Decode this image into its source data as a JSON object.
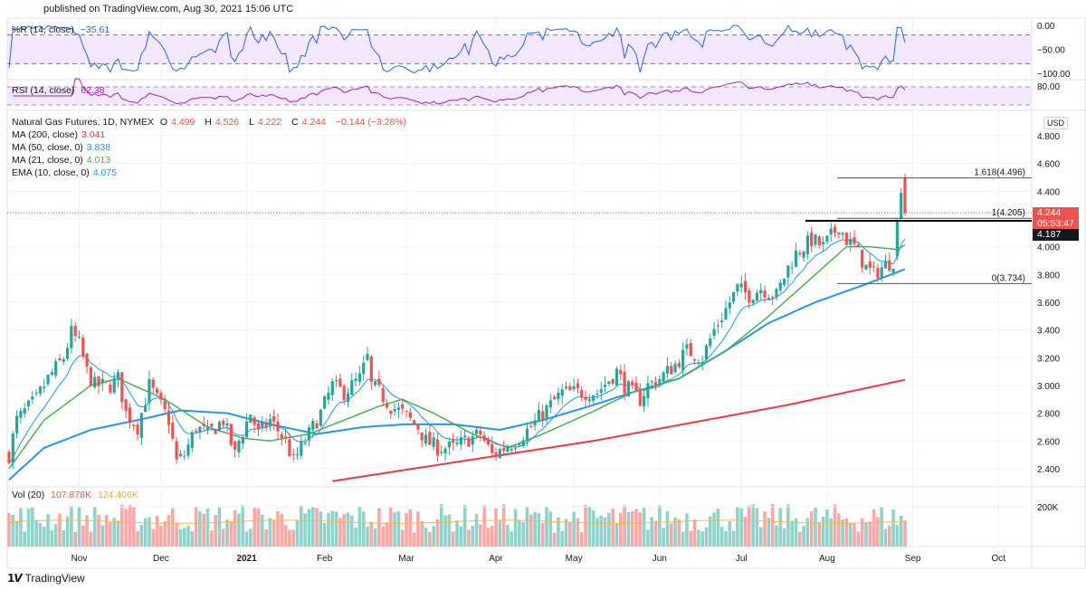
{
  "header": {
    "published": "published on TradingView.com, Aug 30, 2021 15:06 UTC"
  },
  "footer": {
    "brand": "TradingView",
    "logo_text": "TV"
  },
  "indicators": {
    "wr": {
      "label": "%R (14, close)",
      "value": "−35.61",
      "axis": [
        "0.00",
        "−50.00",
        "−100.00"
      ],
      "color": "#2962ff"
    },
    "rsi": {
      "label": "RSI (14, close)",
      "value": "62.38",
      "axis": [
        "80.00"
      ],
      "color": "#9c27b0"
    },
    "vol": {
      "label": "Vol (20)",
      "value": "107.878K",
      "ma_value": "124.406K",
      "axis": "200K"
    }
  },
  "main": {
    "symbol": "Natural Gas Futures, 1D, NYMEX",
    "ohlc": {
      "o_label": "O",
      "o": "4.499",
      "h_label": "H",
      "h": "4.526",
      "l_label": "L",
      "l": "4.222",
      "c_label": "C",
      "c": "4.244",
      "change": "−0.144 (−3.28%)"
    },
    "ma200": {
      "label": "MA (200, close)",
      "value": "3.041",
      "color": "#f23645"
    },
    "ma50": {
      "label": "MA (50, close, 0)",
      "value": "3.838",
      "color": "#2196f3"
    },
    "ma21": {
      "label": "MA (21, close, 0)",
      "value": "4.013",
      "color": "#4caf50"
    },
    "ema10": {
      "label": "EMA (10, close, 0)",
      "value": "4.075",
      "color": "#2196f3"
    },
    "currency": "USD",
    "last_price": "4.244",
    "countdown": "05:53:47",
    "crosshair_price": "4.187",
    "fib": [
      {
        "label": "1.618(4.496)",
        "price": 4.496
      },
      {
        "label": "1(4.205)",
        "price": 4.205
      },
      {
        "label": "0(3.734)",
        "price": 3.734
      }
    ]
  },
  "colors": {
    "up": "#26a69a",
    "down": "#ef5350",
    "vol_up": "#8fd3ca",
    "vol_down": "#f7a9a7",
    "vol_ma": "#ffb74d",
    "band": "#f3e8fd"
  },
  "chart_data": {
    "type": "candlestick",
    "title": "Natural Gas Futures, 1D, NYMEX",
    "ylim": [
      2.3,
      4.85
    ],
    "y_ticks": [
      "2.400",
      "2.600",
      "2.800",
      "3.000",
      "3.200",
      "3.400",
      "3.600",
      "3.800",
      "4.000",
      "4.200",
      "4.400",
      "4.600",
      "4.800"
    ],
    "x_ticks": [
      {
        "label": "Nov",
        "day": 18
      },
      {
        "label": "Dec",
        "day": 39
      },
      {
        "label": "2021",
        "day": 61
      },
      {
        "label": "Feb",
        "day": 81
      },
      {
        "label": "Mar",
        "day": 102
      },
      {
        "label": "Apr",
        "day": 125
      },
      {
        "label": "May",
        "day": 145
      },
      {
        "label": "Jun",
        "day": 167
      },
      {
        "label": "Jul",
        "day": 188
      },
      {
        "label": "Aug",
        "day": 210
      },
      {
        "label": "Sep",
        "day": 232
      },
      {
        "label": "Oct",
        "day": 254
      }
    ],
    "num_days": 231,
    "approx_close_path": [
      [
        0,
        2.5
      ],
      [
        2,
        2.75
      ],
      [
        7,
        2.9
      ],
      [
        10,
        3.05
      ],
      [
        14,
        3.2
      ],
      [
        16,
        3.38
      ],
      [
        18,
        3.3
      ],
      [
        20,
        3.1
      ],
      [
        22,
        3.0
      ],
      [
        26,
        3.0
      ],
      [
        28,
        3.05
      ],
      [
        30,
        2.8
      ],
      [
        33,
        2.7
      ],
      [
        36,
        3.0
      ],
      [
        38,
        2.9
      ],
      [
        41,
        2.75
      ],
      [
        43,
        2.45
      ],
      [
        45,
        2.5
      ],
      [
        48,
        2.7
      ],
      [
        51,
        2.65
      ],
      [
        55,
        2.75
      ],
      [
        58,
        2.5
      ],
      [
        59,
        2.6
      ],
      [
        62,
        2.8
      ],
      [
        64,
        2.65
      ],
      [
        67,
        2.75
      ],
      [
        71,
        2.6
      ],
      [
        73,
        2.45
      ],
      [
        77,
        2.65
      ],
      [
        80,
        2.8
      ],
      [
        83,
        3.0
      ],
      [
        86,
        2.95
      ],
      [
        90,
        3.05
      ],
      [
        92,
        3.2
      ],
      [
        93,
        3.0
      ],
      [
        95,
        2.95
      ],
      [
        98,
        2.85
      ],
      [
        101,
        2.8
      ],
      [
        105,
        2.7
      ],
      [
        107,
        2.6
      ],
      [
        110,
        2.55
      ],
      [
        114,
        2.55
      ],
      [
        117,
        2.6
      ],
      [
        121,
        2.65
      ],
      [
        124,
        2.5
      ],
      [
        127,
        2.55
      ],
      [
        130,
        2.6
      ],
      [
        134,
        2.7
      ],
      [
        137,
        2.8
      ],
      [
        142,
        2.95
      ],
      [
        147,
        2.95
      ],
      [
        151,
        2.95
      ],
      [
        156,
        3.1
      ],
      [
        158,
        3.0
      ],
      [
        162,
        2.9
      ],
      [
        164,
        3.0
      ],
      [
        167,
        3.05
      ],
      [
        171,
        3.15
      ],
      [
        174,
        3.25
      ],
      [
        178,
        3.2
      ],
      [
        181,
        3.4
      ],
      [
        185,
        3.6
      ],
      [
        187,
        3.7
      ],
      [
        190,
        3.65
      ],
      [
        193,
        3.7
      ],
      [
        197,
        3.65
      ],
      [
        200,
        3.85
      ],
      [
        202,
        3.95
      ],
      [
        206,
        4.05
      ],
      [
        209,
        4.0
      ],
      [
        213,
        4.15
      ],
      [
        215,
        4.05
      ],
      [
        217,
        4.0
      ],
      [
        220,
        3.85
      ],
      [
        222,
        3.8
      ],
      [
        224,
        3.85
      ],
      [
        227,
        3.9
      ]
    ],
    "last_candles": [
      {
        "day": 228,
        "o": 3.93,
        "h": 4.21,
        "l": 3.9,
        "c": 4.19
      },
      {
        "day": 229,
        "o": 4.2,
        "h": 4.42,
        "l": 4.19,
        "c": 4.388
      },
      {
        "day": 230,
        "o": 4.499,
        "h": 4.526,
        "l": 4.222,
        "c": 4.244
      }
    ],
    "ma200_path": [
      [
        83,
        2.31
      ],
      [
        150,
        2.6
      ],
      [
        200,
        2.86
      ],
      [
        230,
        3.041
      ]
    ],
    "ma50_path": [
      [
        0,
        2.32
      ],
      [
        9,
        2.55
      ],
      [
        21,
        2.68
      ],
      [
        33,
        2.75
      ],
      [
        44,
        2.82
      ],
      [
        56,
        2.8
      ],
      [
        67,
        2.72
      ],
      [
        79,
        2.65
      ],
      [
        91,
        2.7
      ],
      [
        102,
        2.72
      ],
      [
        114,
        2.72
      ],
      [
        126,
        2.68
      ],
      [
        137,
        2.75
      ],
      [
        149,
        2.85
      ],
      [
        160,
        2.95
      ],
      [
        172,
        3.05
      ],
      [
        184,
        3.25
      ],
      [
        195,
        3.45
      ],
      [
        207,
        3.6
      ],
      [
        219,
        3.72
      ],
      [
        230,
        3.838
      ]
    ],
    "ma21_path": [
      [
        0,
        2.4
      ],
      [
        9,
        2.75
      ],
      [
        21,
        3.0
      ],
      [
        28,
        3.05
      ],
      [
        40,
        2.9
      ],
      [
        51,
        2.7
      ],
      [
        60,
        2.62
      ],
      [
        67,
        2.6
      ],
      [
        77,
        2.65
      ],
      [
        86,
        2.75
      ],
      [
        95,
        2.85
      ],
      [
        101,
        2.9
      ],
      [
        109,
        2.8
      ],
      [
        119,
        2.65
      ],
      [
        128,
        2.55
      ],
      [
        137,
        2.65
      ],
      [
        149,
        2.8
      ],
      [
        160,
        2.95
      ],
      [
        172,
        3.05
      ],
      [
        184,
        3.25
      ],
      [
        195,
        3.5
      ],
      [
        207,
        3.8
      ],
      [
        215,
        4.0
      ],
      [
        221,
        4.0
      ],
      [
        228,
        3.98
      ],
      [
        230,
        4.013
      ]
    ],
    "volume_range_k": [
      70,
      215
    ],
    "volume_ma_k": 124.4
  }
}
